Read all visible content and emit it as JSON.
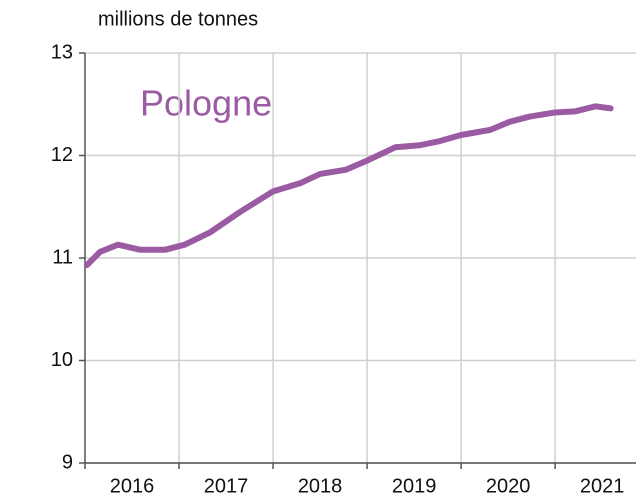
{
  "chart_data": {
    "type": "line",
    "y_label": "millions de tonnes",
    "annotation": "Pologne",
    "x": [
      2016.02,
      2016.16,
      2016.35,
      2016.59,
      2016.85,
      2017.06,
      2017.33,
      2017.65,
      2018.0,
      2018.29,
      2018.5,
      2018.77,
      2019.0,
      2019.3,
      2019.56,
      2019.77,
      2020.0,
      2020.31,
      2020.52,
      2020.73,
      2021.0,
      2021.21,
      2021.43,
      2021.59
    ],
    "series": [
      {
        "name": "Pologne",
        "color": "#9b5ba3",
        "values": [
          10.93,
          11.06,
          11.13,
          11.08,
          11.08,
          11.13,
          11.25,
          11.45,
          11.65,
          11.73,
          11.82,
          11.86,
          11.95,
          12.08,
          12.1,
          12.14,
          12.2,
          12.25,
          12.33,
          12.38,
          12.42,
          12.43,
          12.48,
          12.46
        ]
      }
    ],
    "xlim": [
      2016,
      2021.86
    ],
    "xticks": [
      2016,
      2017,
      2018,
      2019,
      2020,
      2021
    ],
    "ylim": [
      9,
      13
    ],
    "yticks": [
      9,
      10,
      11,
      12,
      13
    ],
    "grid": true
  }
}
